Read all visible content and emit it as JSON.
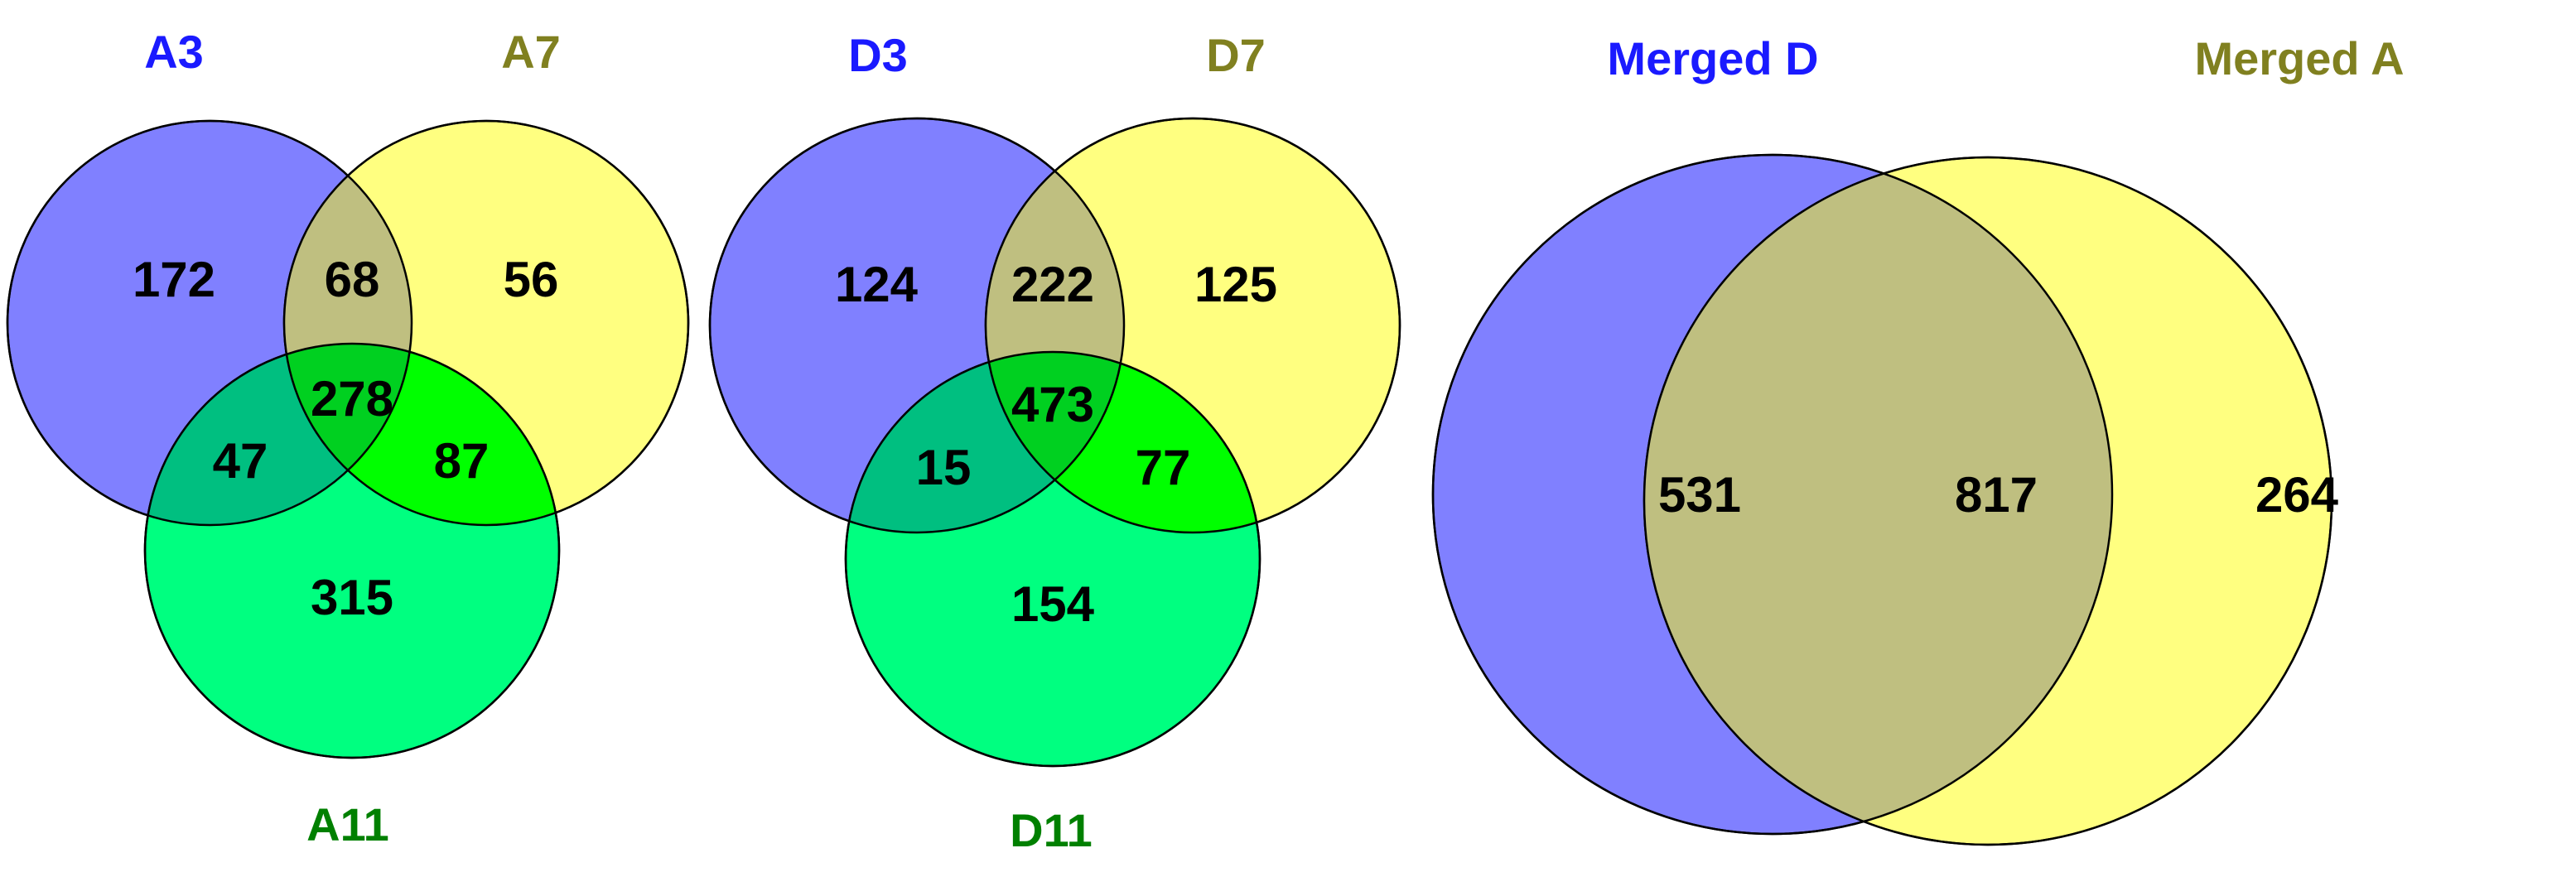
{
  "colors": {
    "blue": "#8080ff",
    "yellow": "#ffff80",
    "green": "#00ff80",
    "blue_yellow": "#bfbf80",
    "blue_green": "#00bf80",
    "yellow_green": "#00ff00",
    "all_three": "#00d020",
    "label_blue": "#1a1aff",
    "label_olive": "#808020",
    "label_green": "#008000"
  },
  "venn_a": {
    "labels": {
      "set1": "A3",
      "set2": "A7",
      "set3": "A11"
    },
    "counts": {
      "only1": "172",
      "only2": "56",
      "only3": "315",
      "s12": "68",
      "s13": "47",
      "s23": "87",
      "s123": "278"
    }
  },
  "venn_d": {
    "labels": {
      "set1": "D3",
      "set2": "D7",
      "set3": "D11"
    },
    "counts": {
      "only1": "124",
      "only2": "125",
      "only3": "154",
      "s12": "222",
      "s13": "15",
      "s23": "77",
      "s123": "473"
    }
  },
  "venn_merged": {
    "labels": {
      "set1": "Merged D",
      "set2": "Merged A"
    },
    "counts": {
      "only1": "531",
      "both": "817",
      "only2": "264"
    }
  }
}
